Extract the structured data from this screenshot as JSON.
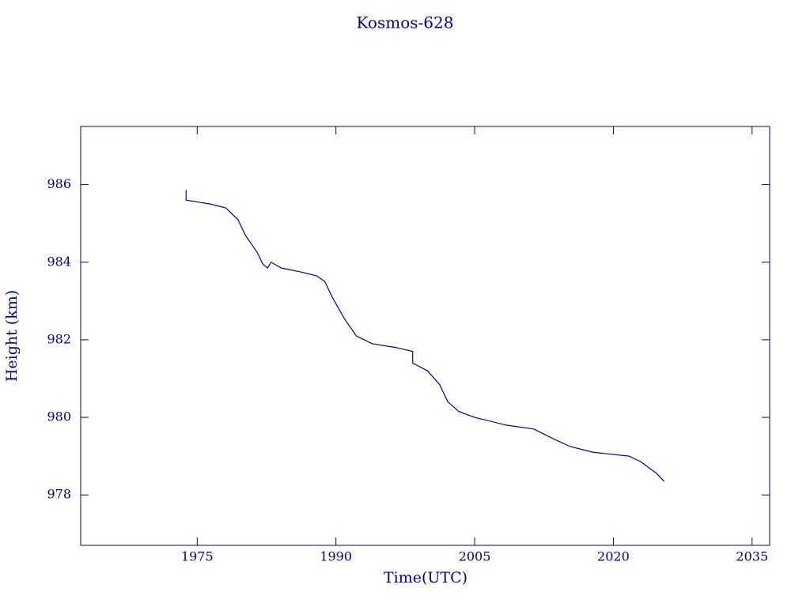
{
  "chart_data": {
    "type": "line",
    "title": "Kosmos-628",
    "x_label": "Time(UTC)",
    "y_label": "Height (km)",
    "color": "#0000a0",
    "xlim": [
      1962.4,
      2036.9
    ],
    "ylim": [
      976.7,
      987.5
    ],
    "xticks": [
      1975,
      1990,
      2005,
      2020,
      2035
    ],
    "yticks": [
      978,
      980,
      982,
      984,
      986
    ],
    "x": [
      1973.8,
      1973.8,
      1975.1,
      1976.4,
      1978.1,
      1979.4,
      1980.2,
      1981.5,
      1982.1,
      1982.6,
      1983.0,
      1984.1,
      1986.2,
      1987.9,
      1988.8,
      1989.6,
      1990.9,
      1992.2,
      1993.9,
      1996.5,
      1998.3,
      1998.3,
      1999.9,
      2001.2,
      2002.1,
      2003.3,
      2005.0,
      2008.4,
      2011.4,
      2013.5,
      2015.3,
      2017.8,
      2021.7,
      2023.0,
      2024.7,
      2025.5
    ],
    "values": [
      985.86,
      985.6,
      985.55,
      985.5,
      985.4,
      985.1,
      984.7,
      984.25,
      983.95,
      983.85,
      984.0,
      983.85,
      983.75,
      983.65,
      983.5,
      983.1,
      982.55,
      982.1,
      981.9,
      981.8,
      981.7,
      981.4,
      981.2,
      980.85,
      980.4,
      980.15,
      980.0,
      979.8,
      979.7,
      979.45,
      979.25,
      979.1,
      979.0,
      978.85,
      978.55,
      978.35
    ]
  }
}
